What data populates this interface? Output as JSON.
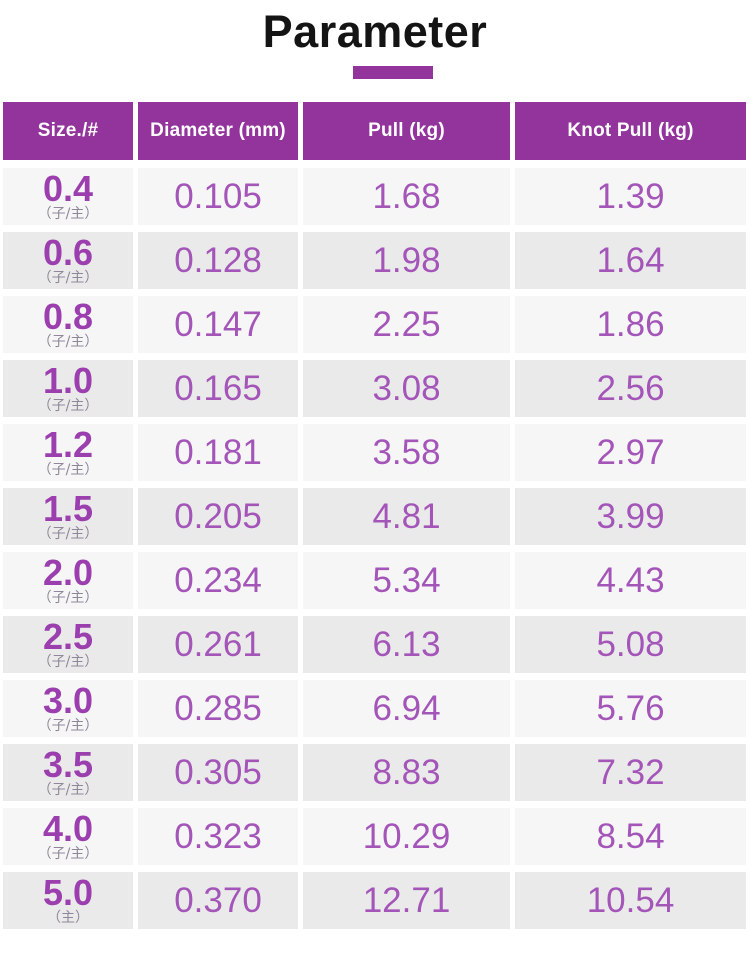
{
  "title": "Parameter",
  "colors": {
    "accent": "#93349c",
    "size_text": "#9c3fae",
    "value_text": "#a355b8",
    "row_light": "#f7f6f7",
    "row_dark": "#ebeaeb"
  },
  "table": {
    "headers": [
      {
        "id": "size",
        "label": "Size./#"
      },
      {
        "id": "diameter",
        "label": "Diameter (mm)"
      },
      {
        "id": "pull",
        "label": "Pull (kg)"
      },
      {
        "id": "knot_pull",
        "label": "Knot Pull (kg)"
      }
    ],
    "rows": [
      {
        "size": "0.4",
        "note": "（子/主）",
        "diameter": "0.105",
        "pull": "1.68",
        "knot_pull": "1.39"
      },
      {
        "size": "0.6",
        "note": "（子/主）",
        "diameter": "0.128",
        "pull": "1.98",
        "knot_pull": "1.64"
      },
      {
        "size": "0.8",
        "note": "（子/主）",
        "diameter": "0.147",
        "pull": "2.25",
        "knot_pull": "1.86"
      },
      {
        "size": "1.0",
        "note": "（子/主）",
        "diameter": "0.165",
        "pull": "3.08",
        "knot_pull": "2.56"
      },
      {
        "size": "1.2",
        "note": "（子/主）",
        "diameter": "0.181",
        "pull": "3.58",
        "knot_pull": "2.97"
      },
      {
        "size": "1.5",
        "note": "（子/主）",
        "diameter": "0.205",
        "pull": "4.81",
        "knot_pull": "3.99"
      },
      {
        "size": "2.0",
        "note": "（子/主）",
        "diameter": "0.234",
        "pull": "5.34",
        "knot_pull": "4.43"
      },
      {
        "size": "2.5",
        "note": "（子/主）",
        "diameter": "0.261",
        "pull": "6.13",
        "knot_pull": "5.08"
      },
      {
        "size": "3.0",
        "note": "（子/主）",
        "diameter": "0.285",
        "pull": "6.94",
        "knot_pull": "5.76"
      },
      {
        "size": "3.5",
        "note": "（子/主）",
        "diameter": "0.305",
        "pull": "8.83",
        "knot_pull": "7.32"
      },
      {
        "size": "4.0",
        "note": "（子/主）",
        "diameter": "0.323",
        "pull": "10.29",
        "knot_pull": "8.54"
      },
      {
        "size": "5.0",
        "note": "（主）",
        "diameter": "0.370",
        "pull": "12.71",
        "knot_pull": "10.54"
      }
    ]
  }
}
